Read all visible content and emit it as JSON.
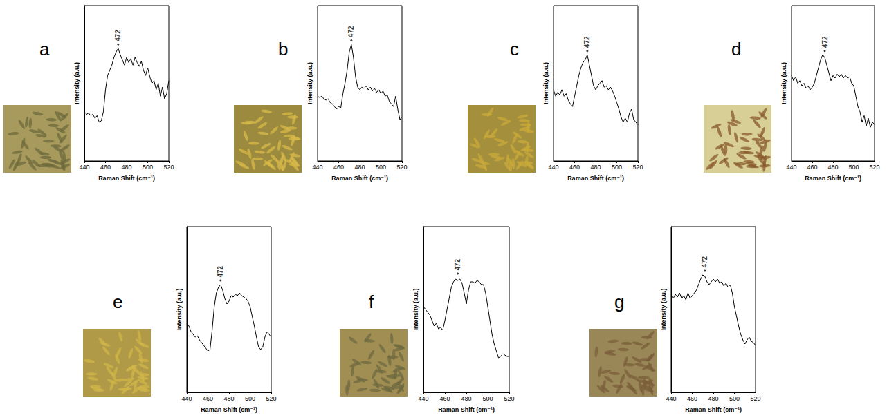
{
  "chart_data": [
    {
      "panel": "a",
      "type": "line",
      "x_label": "Raman Shift (cm⁻¹)",
      "y_label": "Intensity (a.u.)",
      "xlim": [
        440,
        520
      ],
      "xticks": [
        440,
        460,
        480,
        500,
        520
      ],
      "ylim": [
        0,
        1.2
      ],
      "tick_labels": "x",
      "color": "#000000",
      "x": [
        440,
        442,
        444,
        446,
        448,
        450,
        452,
        454,
        456,
        458,
        460,
        462,
        464,
        466,
        468,
        470,
        472,
        474,
        476,
        478,
        480,
        482,
        484,
        486,
        488,
        490,
        492,
        494,
        496,
        498,
        500,
        502,
        504,
        506,
        508,
        510,
        512,
        514,
        516,
        518,
        520
      ],
      "values": [
        0.38,
        0.36,
        0.37,
        0.35,
        0.36,
        0.33,
        0.35,
        0.3,
        0.31,
        0.38,
        0.55,
        0.66,
        0.7,
        0.74,
        0.8,
        0.84,
        0.87,
        0.82,
        0.78,
        0.74,
        0.8,
        0.76,
        0.79,
        0.74,
        0.8,
        0.76,
        0.73,
        0.77,
        0.7,
        0.66,
        0.72,
        0.65,
        0.6,
        0.62,
        0.55,
        0.6,
        0.5,
        0.57,
        0.48,
        0.52,
        0.62
      ],
      "annotations": [
        {
          "text": "472",
          "x": 472,
          "y": 0.9
        }
      ]
    },
    {
      "panel": "b",
      "type": "line",
      "x_label": "Raman Shift (cm⁻¹)",
      "y_label": "Intensity (a.u.)",
      "xlim": [
        440,
        520
      ],
      "xticks": [
        440,
        460,
        480,
        500,
        520
      ],
      "ylim": [
        0,
        1.2
      ],
      "tick_labels": "x",
      "color": "#000000",
      "x": [
        440,
        442,
        444,
        446,
        448,
        450,
        452,
        454,
        456,
        458,
        460,
        462,
        464,
        466,
        468,
        470,
        472,
        474,
        476,
        478,
        480,
        482,
        484,
        486,
        488,
        490,
        492,
        494,
        496,
        498,
        500,
        502,
        504,
        506,
        508,
        510,
        512,
        514,
        516,
        518,
        520
      ],
      "values": [
        0.5,
        0.49,
        0.5,
        0.48,
        0.47,
        0.48,
        0.45,
        0.44,
        0.42,
        0.4,
        0.42,
        0.41,
        0.52,
        0.6,
        0.7,
        0.84,
        0.9,
        0.8,
        0.65,
        0.57,
        0.55,
        0.57,
        0.56,
        0.58,
        0.55,
        0.57,
        0.54,
        0.56,
        0.53,
        0.55,
        0.52,
        0.54,
        0.5,
        0.51,
        0.46,
        0.44,
        0.42,
        0.5,
        0.4,
        0.32,
        0.34
      ],
      "annotations": [
        {
          "text": "472",
          "x": 472,
          "y": 0.93
        }
      ]
    },
    {
      "panel": "c",
      "type": "line",
      "x_label": "Raman Shift (cm⁻¹)",
      "y_label": "Intensity (a.u.)",
      "xlim": [
        440,
        520
      ],
      "xticks": [
        440,
        460,
        480,
        500,
        520
      ],
      "ylim": [
        0,
        1.2
      ],
      "tick_labels": "x",
      "color": "#000000",
      "x": [
        440,
        442,
        444,
        446,
        448,
        450,
        452,
        454,
        456,
        458,
        460,
        462,
        464,
        466,
        468,
        470,
        472,
        474,
        476,
        478,
        480,
        482,
        484,
        486,
        488,
        490,
        492,
        494,
        496,
        498,
        500,
        502,
        504,
        506,
        508,
        510,
        512,
        514,
        516,
        518,
        520
      ],
      "values": [
        0.55,
        0.5,
        0.53,
        0.51,
        0.55,
        0.5,
        0.52,
        0.47,
        0.44,
        0.42,
        0.5,
        0.58,
        0.66,
        0.72,
        0.76,
        0.78,
        0.82,
        0.74,
        0.66,
        0.58,
        0.55,
        0.58,
        0.6,
        0.62,
        0.57,
        0.58,
        0.55,
        0.57,
        0.54,
        0.5,
        0.45,
        0.4,
        0.34,
        0.3,
        0.33,
        0.3,
        0.37,
        0.4,
        0.32,
        0.3,
        0.28
      ],
      "annotations": [
        {
          "text": "472",
          "x": 472,
          "y": 0.85
        }
      ]
    },
    {
      "panel": "d",
      "type": "line",
      "x_label": "Raman Shift (cm⁻¹)",
      "y_label": "Intensity (a.u.)",
      "xlim": [
        440,
        520
      ],
      "xticks": [
        440,
        460,
        480,
        500,
        520
      ],
      "ylim": [
        0,
        1.2
      ],
      "tick_labels": "x",
      "color": "#000000",
      "x": [
        440,
        442,
        444,
        446,
        448,
        450,
        452,
        454,
        456,
        458,
        460,
        462,
        464,
        466,
        468,
        470,
        472,
        474,
        476,
        478,
        480,
        482,
        484,
        486,
        488,
        490,
        492,
        494,
        496,
        498,
        500,
        502,
        504,
        506,
        508,
        510,
        512,
        514,
        516,
        518,
        520
      ],
      "values": [
        0.66,
        0.62,
        0.65,
        0.6,
        0.62,
        0.58,
        0.6,
        0.56,
        0.58,
        0.55,
        0.57,
        0.6,
        0.66,
        0.72,
        0.78,
        0.82,
        0.8,
        0.74,
        0.68,
        0.62,
        0.66,
        0.64,
        0.67,
        0.65,
        0.67,
        0.64,
        0.66,
        0.64,
        0.65,
        0.6,
        0.58,
        0.5,
        0.42,
        0.38,
        0.3,
        0.35,
        0.27,
        0.33,
        0.26,
        0.3,
        0.28
      ],
      "annotations": [
        {
          "text": "472",
          "x": 472,
          "y": 0.85
        }
      ]
    },
    {
      "panel": "e",
      "type": "line",
      "x_label": "Raman Shift (cm⁻¹)",
      "y_label": "Intensity (a.u.)",
      "xlim": [
        440,
        520
      ],
      "xticks": [
        440,
        460,
        480,
        500,
        520
      ],
      "ylim": [
        0,
        1.2
      ],
      "tick_labels": "x",
      "color": "#000000",
      "x": [
        440,
        442,
        444,
        446,
        448,
        450,
        452,
        454,
        456,
        458,
        460,
        462,
        464,
        466,
        468,
        470,
        472,
        474,
        476,
        478,
        480,
        482,
        484,
        486,
        488,
        490,
        492,
        494,
        496,
        498,
        500,
        502,
        504,
        506,
        508,
        510,
        512,
        514,
        516,
        518,
        520
      ],
      "values": [
        0.5,
        0.48,
        0.44,
        0.42,
        0.4,
        0.41,
        0.38,
        0.36,
        0.34,
        0.32,
        0.3,
        0.31,
        0.45,
        0.62,
        0.72,
        0.76,
        0.78,
        0.74,
        0.68,
        0.64,
        0.66,
        0.7,
        0.69,
        0.71,
        0.7,
        0.72,
        0.7,
        0.69,
        0.68,
        0.66,
        0.62,
        0.55,
        0.48,
        0.4,
        0.33,
        0.31,
        0.33,
        0.4,
        0.44,
        0.42,
        0.4
      ],
      "annotations": [
        {
          "text": "472",
          "x": 472,
          "y": 0.81
        }
      ]
    },
    {
      "panel": "f",
      "type": "line",
      "x_label": "Raman Shift (cm⁻¹)",
      "y_label": "Intensity (a.u.)",
      "xlim": [
        440,
        520
      ],
      "xticks": [
        440,
        460,
        480,
        500,
        520
      ],
      "ylim": [
        0,
        1.2
      ],
      "tick_labels": "x",
      "color": "#000000",
      "x": [
        440,
        442,
        444,
        446,
        448,
        450,
        452,
        454,
        456,
        458,
        460,
        462,
        464,
        466,
        468,
        470,
        472,
        474,
        476,
        478,
        480,
        482,
        484,
        486,
        488,
        490,
        492,
        494,
        496,
        498,
        500,
        502,
        504,
        506,
        508,
        510,
        512,
        514,
        516,
        518,
        520
      ],
      "values": [
        0.62,
        0.6,
        0.58,
        0.56,
        0.52,
        0.48,
        0.5,
        0.46,
        0.47,
        0.45,
        0.52,
        0.6,
        0.68,
        0.76,
        0.8,
        0.82,
        0.81,
        0.82,
        0.79,
        0.72,
        0.64,
        0.74,
        0.8,
        0.8,
        0.79,
        0.81,
        0.8,
        0.78,
        0.78,
        0.72,
        0.62,
        0.52,
        0.42,
        0.35,
        0.3,
        0.25,
        0.26,
        0.28,
        0.27,
        0.26,
        0.26
      ],
      "annotations": [
        {
          "text": "472",
          "x": 472,
          "y": 0.86
        }
      ]
    },
    {
      "panel": "g",
      "type": "line",
      "x_label": "Raman Shift (cm⁻¹)",
      "y_label": "Intensity (a.u.)",
      "xlim": [
        440,
        520
      ],
      "xticks": [
        440,
        460,
        480,
        500,
        520
      ],
      "ylim": [
        0,
        1.2
      ],
      "tick_labels": "x",
      "color": "#000000",
      "x": [
        440,
        442,
        444,
        446,
        448,
        450,
        452,
        454,
        456,
        458,
        460,
        462,
        464,
        466,
        468,
        470,
        472,
        474,
        476,
        478,
        480,
        482,
        484,
        486,
        488,
        490,
        492,
        494,
        496,
        498,
        500,
        502,
        504,
        506,
        508,
        510,
        512,
        514,
        516,
        518,
        520
      ],
      "values": [
        0.7,
        0.68,
        0.71,
        0.69,
        0.72,
        0.68,
        0.7,
        0.67,
        0.72,
        0.68,
        0.7,
        0.72,
        0.74,
        0.78,
        0.82,
        0.85,
        0.84,
        0.8,
        0.78,
        0.8,
        0.82,
        0.8,
        0.82,
        0.79,
        0.8,
        0.77,
        0.79,
        0.76,
        0.78,
        0.72,
        0.62,
        0.55,
        0.48,
        0.42,
        0.38,
        0.35,
        0.38,
        0.4,
        0.37,
        0.36,
        0.34
      ],
      "annotations": [
        {
          "text": "472",
          "x": 472,
          "y": 0.88
        }
      ]
    }
  ]
}
